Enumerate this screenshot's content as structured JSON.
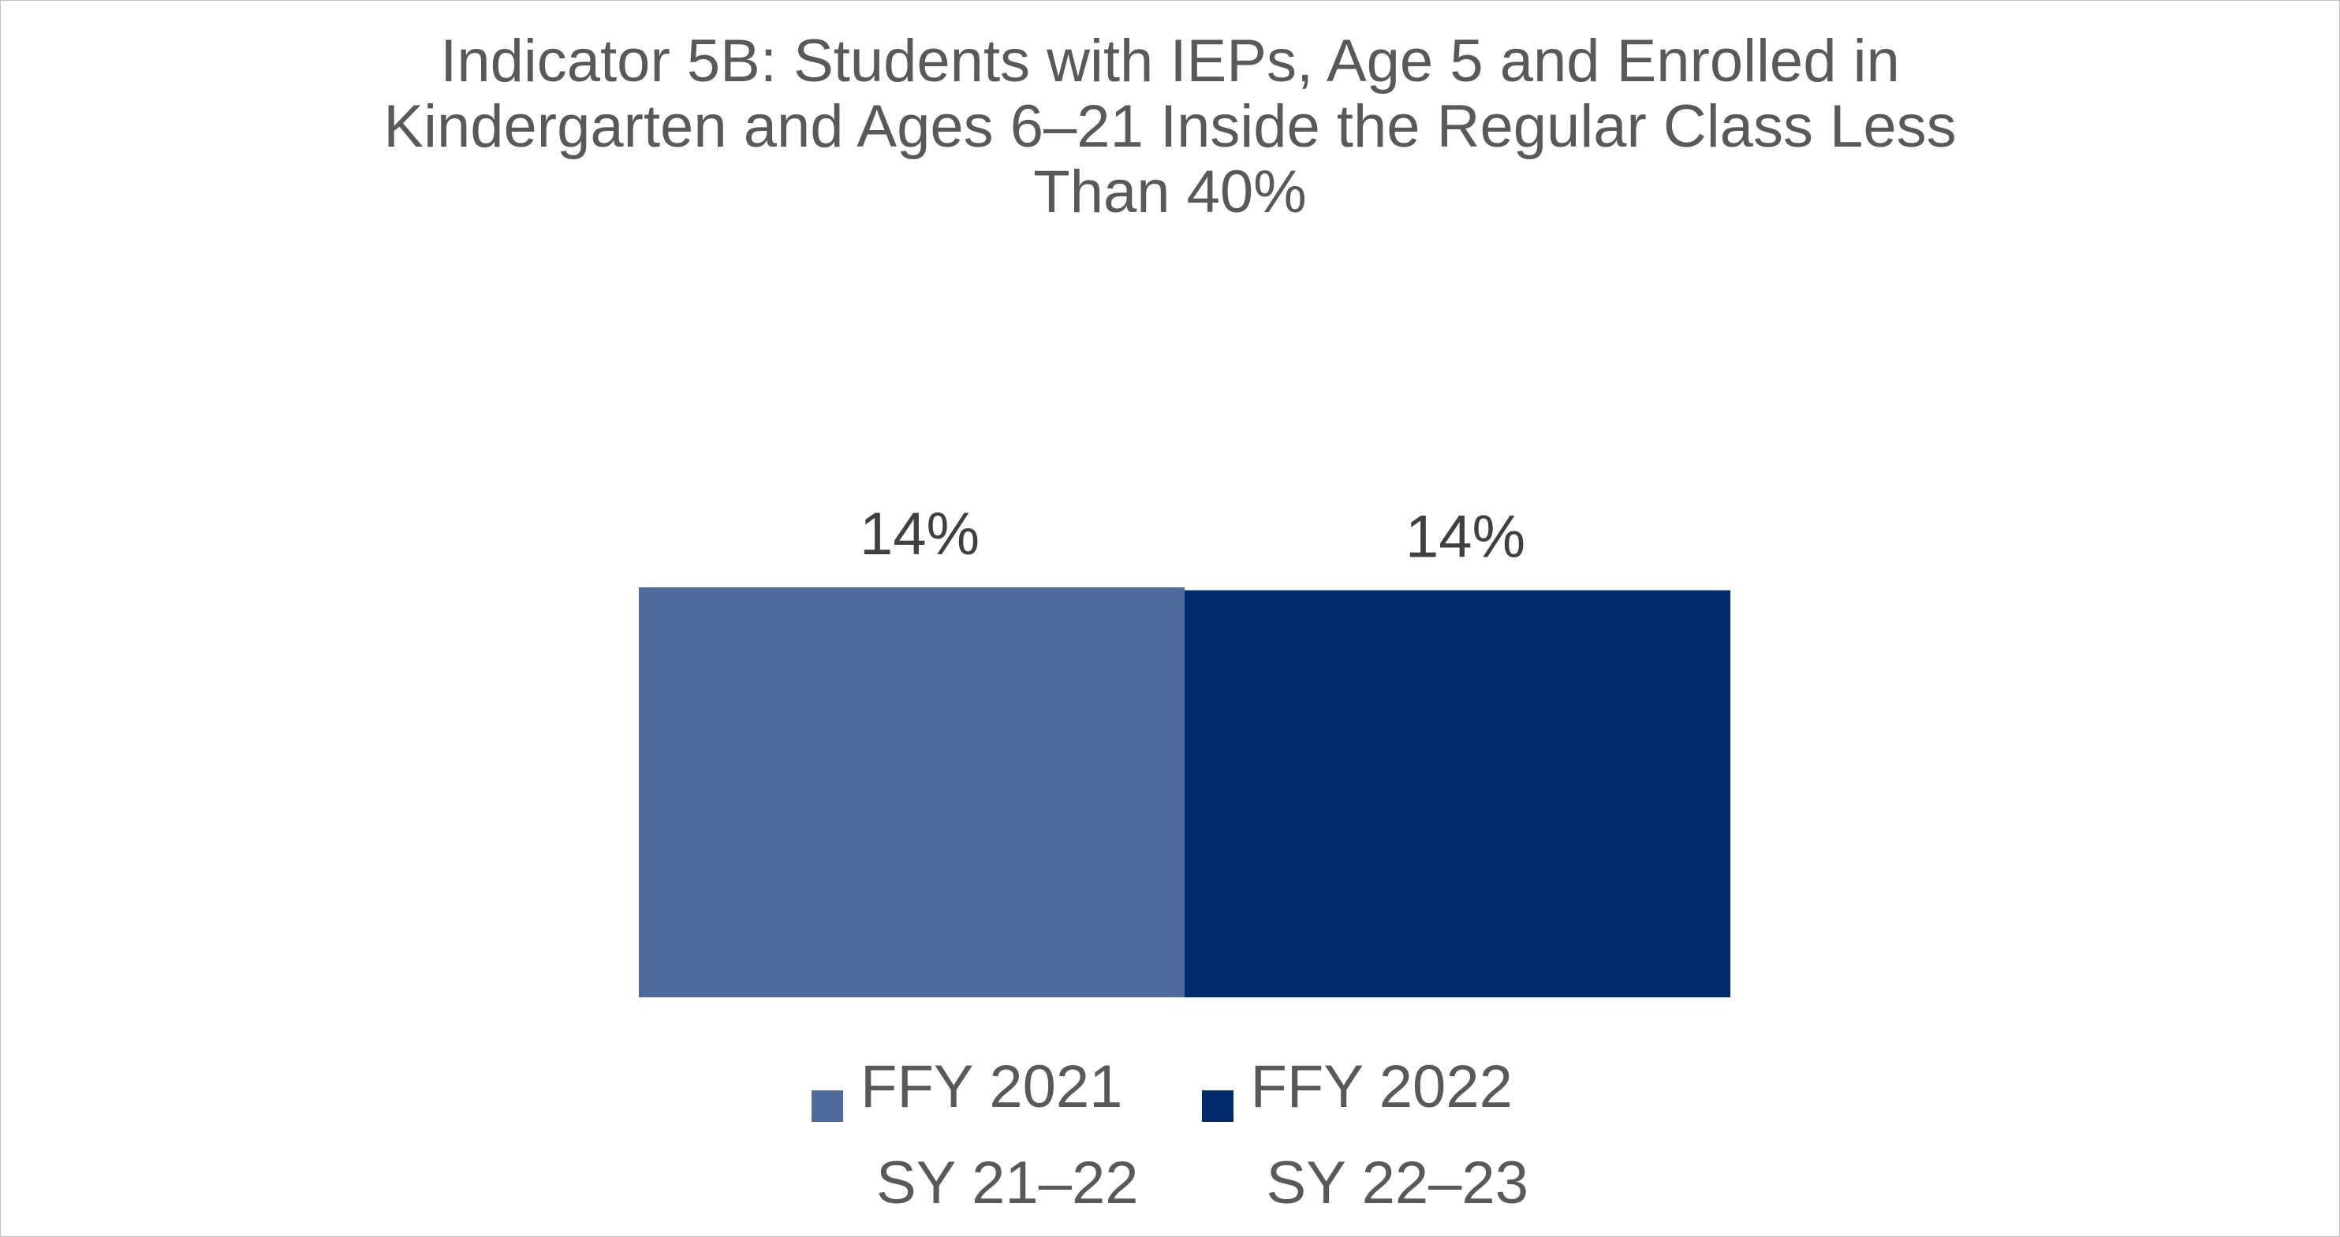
{
  "chart_data": {
    "type": "bar",
    "title_lines": [
      "Indicator 5B: Students with IEPs, Age 5 and Enrolled in",
      "Kindergarten and Ages 6–21 Inside the Regular Class Less",
      "Than 40%"
    ],
    "series": [
      {
        "name_line1": "FFY 2021",
        "name_line2": "SY 21–22",
        "value": 14.1,
        "label": "14%",
        "color": "#4e6b9b"
      },
      {
        "name_line1": "FFY 2022",
        "name_line2": "SY 22–23",
        "value": 14,
        "label": "14%",
        "color": "#002c6d"
      }
    ],
    "grid": false,
    "legend_position": "bottom"
  }
}
